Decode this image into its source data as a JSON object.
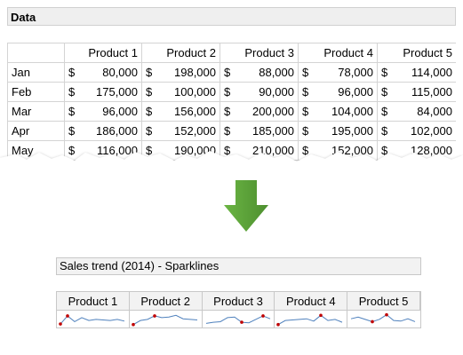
{
  "header": {
    "title": "Data"
  },
  "table": {
    "columns": [
      "",
      "Product 1",
      "Product 2",
      "Product 3",
      "Product 4",
      "Product 5"
    ],
    "currency": "$",
    "rows": [
      {
        "month": "Jan",
        "values": [
          "80,000",
          "198,000",
          "88,000",
          "78,000",
          "114,000"
        ]
      },
      {
        "month": "Feb",
        "values": [
          "175,000",
          "100,000",
          "90,000",
          "96,000",
          "115,000"
        ]
      },
      {
        "month": "Mar",
        "values": [
          "96,000",
          "156,000",
          "200,000",
          "104,000",
          "84,000"
        ]
      },
      {
        "month": "Apr",
        "values": [
          "186,000",
          "152,000",
          "185,000",
          "195,000",
          "102,000"
        ]
      },
      {
        "month": "May",
        "values": [
          "116,000",
          "190,000",
          "210,000",
          "152,000",
          "128,000"
        ]
      }
    ]
  },
  "sparklines": {
    "title": "Sales trend (2014) - Sparklines",
    "products": [
      "Product 1",
      "Product 2",
      "Product 3",
      "Product 4",
      "Product 5"
    ],
    "line_color": "#4f81bd",
    "marker_color": "#c00000"
  },
  "colors": {
    "arrow": "#5aa13a",
    "header_bg": "#efefef"
  }
}
